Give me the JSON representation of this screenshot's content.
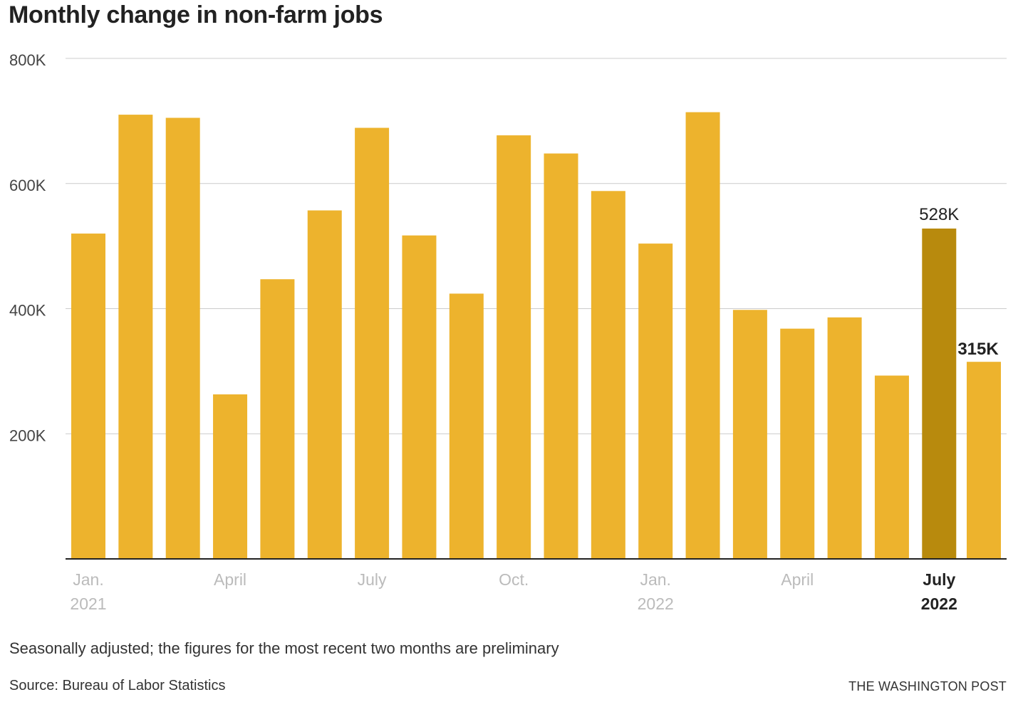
{
  "chart_data": {
    "type": "bar",
    "title": "Monthly change in non-farm jobs",
    "xlabel": "",
    "ylabel": "",
    "ylim": [
      0,
      800000
    ],
    "grid": true,
    "legend": "none",
    "y_ticks": [
      200000,
      400000,
      600000,
      800000
    ],
    "y_tick_labels": [
      "200K",
      "400K",
      "600K",
      "800K"
    ],
    "categories": [
      "Jan. 2021",
      "Feb. 2021",
      "Mar. 2021",
      "Apr. 2021",
      "May 2021",
      "Jun. 2021",
      "Jul. 2021",
      "Aug. 2021",
      "Sep. 2021",
      "Oct. 2021",
      "Nov. 2021",
      "Dec. 2021",
      "Jan. 2022",
      "Feb. 2022",
      "Mar. 2022",
      "Apr. 2022",
      "May 2022",
      "Jun. 2022",
      "Jul. 2022"
    ],
    "x_tick_labels": [
      {
        "index": 0,
        "lines": [
          "Jan.",
          "2021"
        ],
        "emphasis": false
      },
      {
        "index": 3,
        "lines": [
          "April"
        ],
        "emphasis": false
      },
      {
        "index": 6,
        "lines": [
          "July"
        ],
        "emphasis": false
      },
      {
        "index": 9,
        "lines": [
          "Oct."
        ],
        "emphasis": false
      },
      {
        "index": 12,
        "lines": [
          "Jan.",
          "2022"
        ],
        "emphasis": false
      },
      {
        "index": 15,
        "lines": [
          "April"
        ],
        "emphasis": false
      },
      {
        "index": 18,
        "lines": [
          "July",
          "2022"
        ],
        "emphasis": true
      }
    ],
    "series": [
      {
        "values": [
          520000,
          710000,
          705000,
          263000,
          447000,
          557000,
          689000,
          517000,
          424000,
          677000,
          648000,
          588000,
          504000,
          714000,
          398000,
          368000,
          386000,
          293000,
          528000
        ],
        "color": "#EDB32D"
      }
    ],
    "highlight_index": 18,
    "highlight_color": "#B88A0D",
    "label_color_muted": "#BBBBBB",
    "label_color_strong": "#222222",
    "extra_bar": {
      "value": 315000,
      "label": "315K",
      "color": "#EDB32D"
    },
    "data_labels": [
      {
        "index": 18,
        "text": "528K",
        "bold": false
      }
    ]
  },
  "note": "Seasonally adjusted; the figures for the most recent two months are preliminary",
  "source": "Source: Bureau of Labor Statistics",
  "credit": "THE WASHINGTON POST"
}
